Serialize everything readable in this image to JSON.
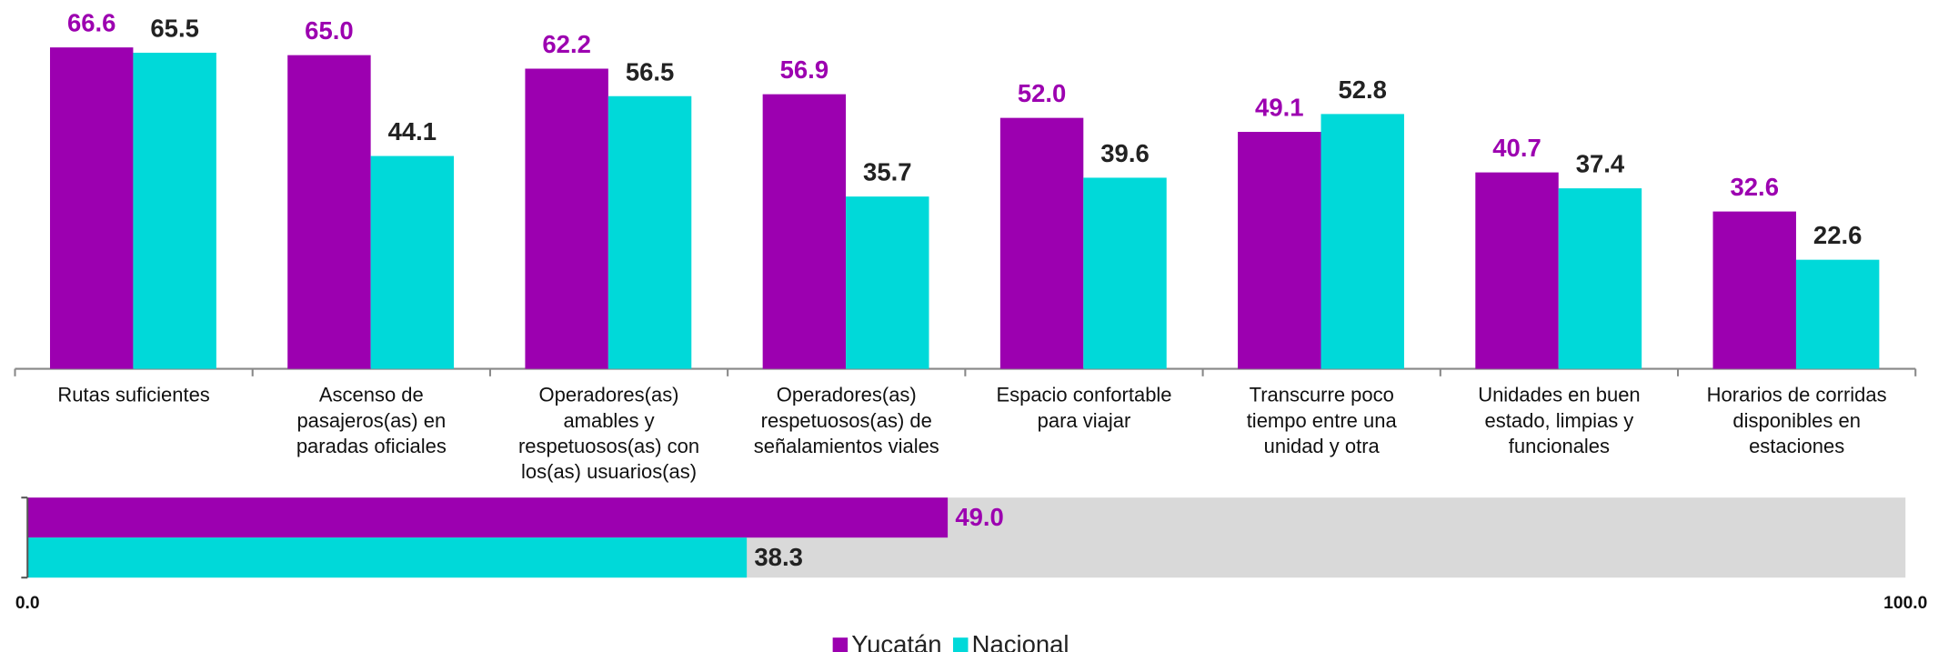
{
  "chart_data": [
    {
      "type": "bar",
      "categories": [
        [
          "Rutas suficientes"
        ],
        [
          "Ascenso de",
          "pasajeros(as) en",
          "paradas oficiales"
        ],
        [
          "Operadores(as)",
          "amables y",
          "respetuosos(as) con",
          "los(as) usuarios(as)"
        ],
        [
          "Operadores(as)",
          "respetuosos(as) de",
          "señalamientos viales"
        ],
        [
          "Espacio confortable",
          "para viajar"
        ],
        [
          "Transcurre poco",
          "tiempo entre una",
          "unidad y otra"
        ],
        [
          "Unidades en buen",
          "estado, limpias y",
          "funcionales"
        ],
        [
          "Horarios de corridas",
          "disponibles en",
          "estaciones"
        ]
      ],
      "series": [
        {
          "name": "Yucatán",
          "color": "#9c00b0",
          "label_color": "#9c00b0",
          "values": [
            66.6,
            65.0,
            62.2,
            56.9,
            52.0,
            49.1,
            40.7,
            32.6
          ],
          "value_labels": [
            "66.6",
            "65.0",
            "62.2",
            "56.9",
            "52.0",
            "49.1",
            "40.7",
            "32.6"
          ]
        },
        {
          "name": "Nacional",
          "color": "#00d9d9",
          "label_color": "#222222",
          "values": [
            65.5,
            44.1,
            56.5,
            35.7,
            39.6,
            52.8,
            37.4,
            22.6
          ],
          "value_labels": [
            "65.5",
            "44.1",
            "56.5",
            "35.7",
            "39.6",
            "52.8",
            "37.4",
            "22.6"
          ]
        }
      ],
      "ylim": [
        0,
        75
      ]
    },
    {
      "type": "hbar",
      "series": [
        {
          "color": "#9c00b0",
          "label_color": "#9c00b0",
          "values": [
            49.0
          ],
          "value_labels": [
            "49.0"
          ]
        },
        {
          "color": "#00d9d9",
          "label_color": "#222222",
          "values": [
            38.3
          ],
          "value_labels": [
            "38.3"
          ]
        }
      ],
      "xlim": [
        0,
        100
      ],
      "xticks": [
        {
          "value": 0,
          "label": "0.0"
        },
        {
          "value": 100,
          "label": "100.0"
        }
      ],
      "track_color": "#d9d9d9"
    }
  ]
}
